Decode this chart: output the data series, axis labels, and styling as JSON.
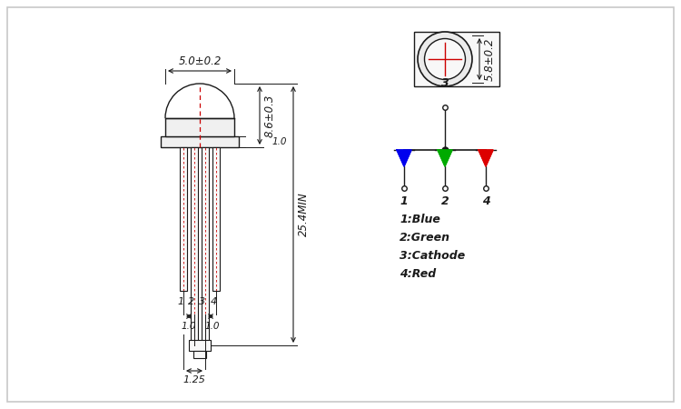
{
  "background_color": "#ffffff",
  "border_color": "#c8c8c8",
  "line_color": "#1a1a1a",
  "dim_line_color": "#cc0000",
  "dimensions": {
    "led_width_tol": "5.0±0.2",
    "dome_height": "8.6±0.3",
    "collar_height": "1.0",
    "total_lead_height": "25.4MIN",
    "lead_spacing": "1.0",
    "lead_pitch": "1.25",
    "top_view_dim": "5.8±0.2"
  },
  "pin_labels": [
    "1",
    "2",
    "3",
    "4"
  ],
  "pin_colors": {
    "1": "#0000ee",
    "2": "#00aa00",
    "3": "#1a1a1a",
    "4": "#dd0000"
  },
  "legend": [
    "1:Blue",
    "2:Green",
    "3:Cathode",
    "4:Red"
  ]
}
